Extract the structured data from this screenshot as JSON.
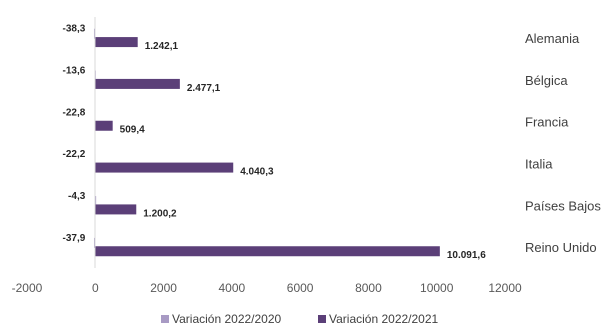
{
  "chart_data": {
    "type": "bar",
    "orientation": "horizontal",
    "categories": [
      "Alemania",
      "Bélgica",
      "Francia",
      "Italia",
      "Países Bajos",
      "Reino Unido"
    ],
    "series": [
      {
        "name": "Variación 2022/2020",
        "values": [
          -38.3,
          -13.6,
          -22.8,
          -22.2,
          -4.3,
          -37.9
        ],
        "labels": [
          "-38,3",
          "-13,6",
          "-22,8",
          "-22,2",
          "-4,3",
          "-37,9"
        ],
        "color": "#a89ac4"
      },
      {
        "name": "Variación 2022/2021",
        "values": [
          1242.1,
          2477.1,
          509.4,
          4040.3,
          1200.2,
          10091.6
        ],
        "labels": [
          "1.242,1",
          "2.477,1",
          "509,4",
          "4.040,3",
          "1.200,2",
          "10.091,6"
        ],
        "color": "#5b3f78"
      }
    ],
    "xlim": [
      -2000,
      12000
    ],
    "xticks": [
      -2000,
      0,
      2000,
      4000,
      6000,
      8000,
      10000,
      12000
    ],
    "grid": false,
    "legend_position": "bottom",
    "category_axis_position": "right"
  }
}
